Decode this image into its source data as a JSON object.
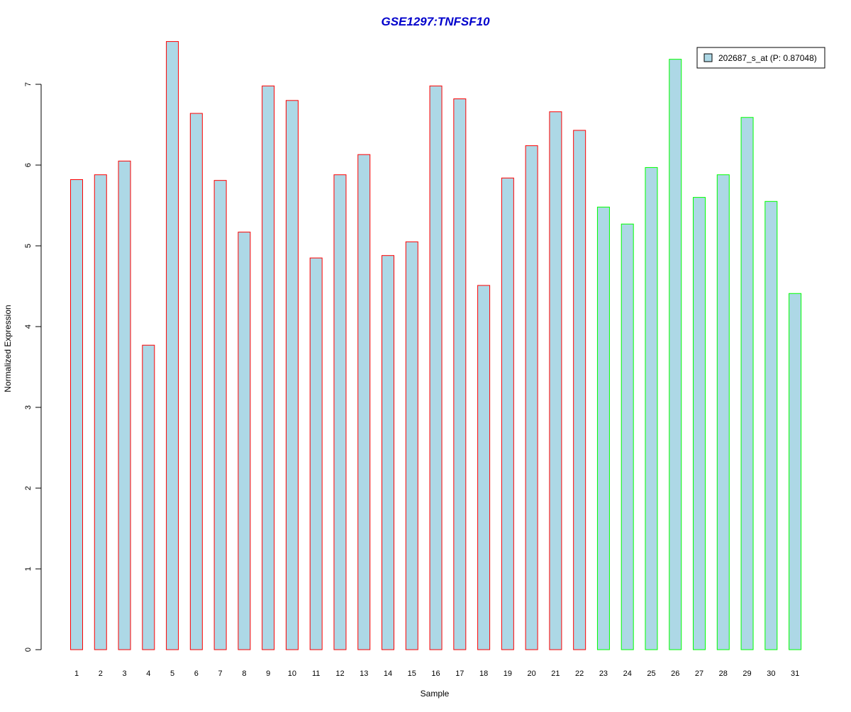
{
  "chart_data": {
    "type": "bar",
    "title": "GSE1297:TNFSF10",
    "xlabel": "Sample",
    "ylabel": "Normalized Expression",
    "ylim": [
      0,
      7.5
    ],
    "yticks": [
      0,
      1,
      2,
      3,
      4,
      5,
      6,
      7
    ],
    "categories": [
      "1",
      "2",
      "3",
      "4",
      "5",
      "6",
      "7",
      "8",
      "9",
      "10",
      "11",
      "12",
      "13",
      "14",
      "15",
      "16",
      "17",
      "18",
      "19",
      "20",
      "21",
      "22",
      "23",
      "24",
      "25",
      "26",
      "27",
      "28",
      "29",
      "30",
      "31"
    ],
    "series": [
      {
        "name": "202687_s_at (P: 0.87048)",
        "values": [
          5.82,
          5.88,
          6.05,
          3.77,
          7.53,
          6.64,
          5.81,
          5.17,
          6.98,
          6.8,
          4.85,
          5.88,
          6.13,
          4.88,
          5.05,
          6.98,
          6.82,
          4.51,
          5.84,
          6.24,
          6.66,
          6.43,
          5.48,
          5.27,
          5.97,
          7.31,
          5.6,
          5.88,
          6.59,
          5.55,
          4.41
        ]
      }
    ],
    "groups": [
      {
        "from": 1,
        "to": 22,
        "border_color": "#ff0000"
      },
      {
        "from": 23,
        "to": 31,
        "border_color": "#00ff00"
      }
    ],
    "colors": {
      "bar_fill": "#add8e6",
      "title": "#0000cc",
      "axis": "#000000"
    },
    "grid": false,
    "legend_placement": "top-right"
  }
}
